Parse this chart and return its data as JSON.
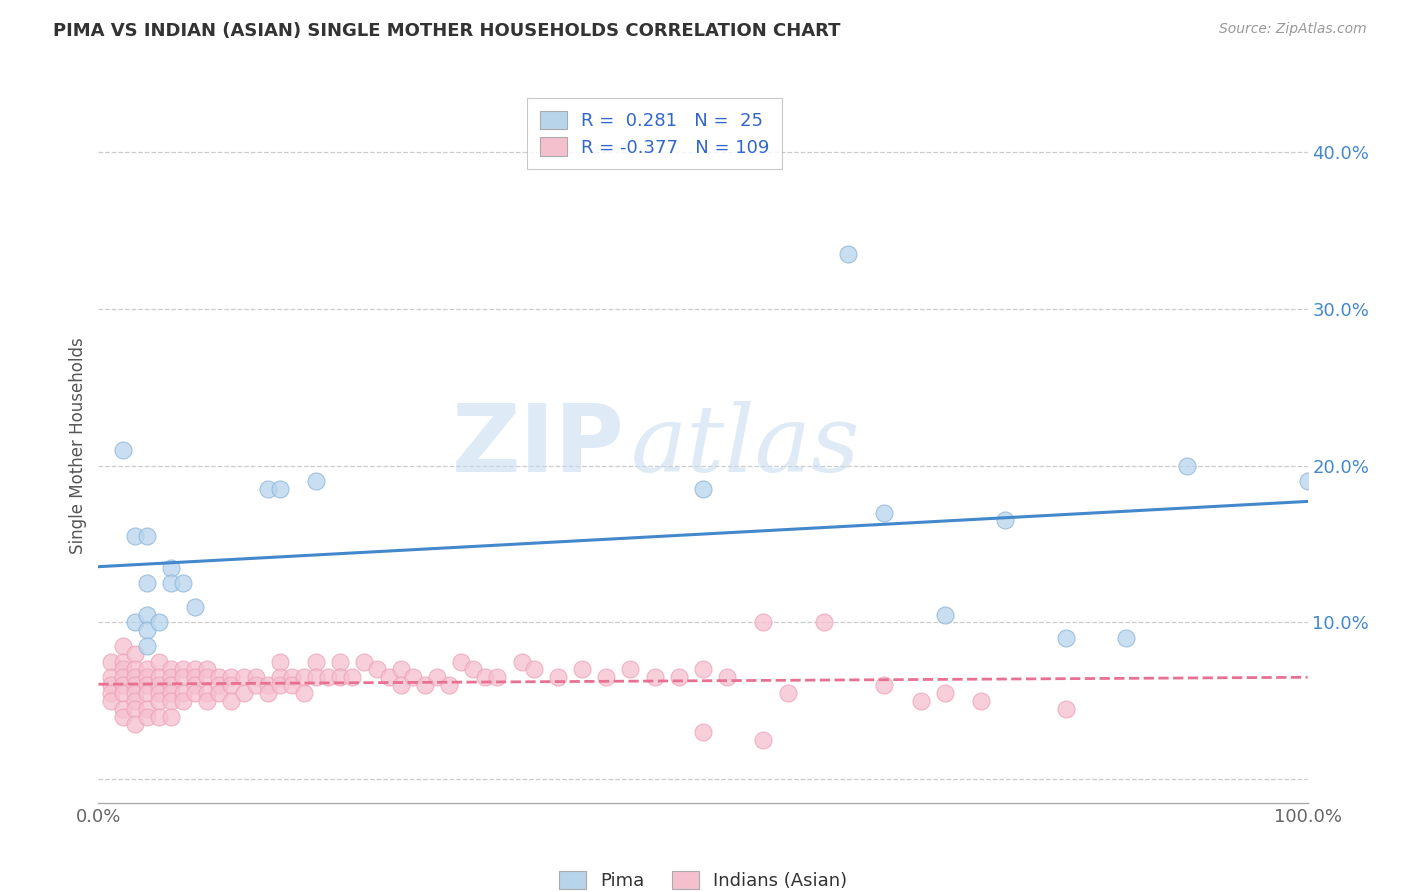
{
  "title": "PIMA VS INDIAN (ASIAN) SINGLE MOTHER HOUSEHOLDS CORRELATION CHART",
  "source": "Source: ZipAtlas.com",
  "ylabel": "Single Mother Households",
  "xlim": [
    0,
    1.0
  ],
  "ylim": [
    -0.015,
    0.44
  ],
  "xticks": [
    0.0,
    0.1,
    0.2,
    0.3,
    0.4,
    0.5,
    0.6,
    0.7,
    0.8,
    0.9,
    1.0
  ],
  "yticks": [
    0.0,
    0.1,
    0.2,
    0.3,
    0.4
  ],
  "pima_color": "#b8d4eb",
  "pima_edge_color": "#89b4d8",
  "indian_color": "#f5c0ce",
  "indian_edge_color": "#eda0b8",
  "line_pima_color": "#4488cc",
  "line_indian_color": "#e87090",
  "legend_pima_label": "Pima",
  "legend_indian_label": "Indians (Asian)",
  "R_pima": 0.281,
  "N_pima": 25,
  "R_indian": -0.377,
  "N_indian": 109,
  "watermark_zip": "ZIP",
  "watermark_atlas": "atlas",
  "tick_label_color": "#4488cc",
  "pima_points": [
    [
      0.02,
      0.21
    ],
    [
      0.03,
      0.1
    ],
    [
      0.03,
      0.155
    ],
    [
      0.04,
      0.155
    ],
    [
      0.04,
      0.125
    ],
    [
      0.04,
      0.105
    ],
    [
      0.04,
      0.095
    ],
    [
      0.04,
      0.085
    ],
    [
      0.05,
      0.1
    ],
    [
      0.06,
      0.135
    ],
    [
      0.06,
      0.125
    ],
    [
      0.07,
      0.125
    ],
    [
      0.08,
      0.11
    ],
    [
      0.14,
      0.185
    ],
    [
      0.15,
      0.185
    ],
    [
      0.18,
      0.19
    ],
    [
      0.5,
      0.185
    ],
    [
      0.62,
      0.335
    ],
    [
      0.65,
      0.17
    ],
    [
      0.7,
      0.105
    ],
    [
      0.75,
      0.165
    ],
    [
      0.8,
      0.09
    ],
    [
      0.85,
      0.09
    ],
    [
      0.9,
      0.2
    ],
    [
      1.0,
      0.19
    ]
  ],
  "indian_points": [
    [
      0.01,
      0.075
    ],
    [
      0.01,
      0.065
    ],
    [
      0.01,
      0.06
    ],
    [
      0.01,
      0.055
    ],
    [
      0.01,
      0.05
    ],
    [
      0.02,
      0.085
    ],
    [
      0.02,
      0.075
    ],
    [
      0.02,
      0.07
    ],
    [
      0.02,
      0.065
    ],
    [
      0.02,
      0.06
    ],
    [
      0.02,
      0.055
    ],
    [
      0.02,
      0.045
    ],
    [
      0.02,
      0.04
    ],
    [
      0.03,
      0.08
    ],
    [
      0.03,
      0.07
    ],
    [
      0.03,
      0.065
    ],
    [
      0.03,
      0.06
    ],
    [
      0.03,
      0.055
    ],
    [
      0.03,
      0.05
    ],
    [
      0.03,
      0.045
    ],
    [
      0.03,
      0.035
    ],
    [
      0.04,
      0.07
    ],
    [
      0.04,
      0.065
    ],
    [
      0.04,
      0.06
    ],
    [
      0.04,
      0.055
    ],
    [
      0.04,
      0.045
    ],
    [
      0.04,
      0.04
    ],
    [
      0.05,
      0.075
    ],
    [
      0.05,
      0.065
    ],
    [
      0.05,
      0.06
    ],
    [
      0.05,
      0.055
    ],
    [
      0.05,
      0.05
    ],
    [
      0.05,
      0.04
    ],
    [
      0.06,
      0.07
    ],
    [
      0.06,
      0.065
    ],
    [
      0.06,
      0.06
    ],
    [
      0.06,
      0.055
    ],
    [
      0.06,
      0.05
    ],
    [
      0.06,
      0.04
    ],
    [
      0.07,
      0.07
    ],
    [
      0.07,
      0.065
    ],
    [
      0.07,
      0.055
    ],
    [
      0.07,
      0.05
    ],
    [
      0.08,
      0.07
    ],
    [
      0.08,
      0.065
    ],
    [
      0.08,
      0.06
    ],
    [
      0.08,
      0.055
    ],
    [
      0.09,
      0.07
    ],
    [
      0.09,
      0.065
    ],
    [
      0.09,
      0.055
    ],
    [
      0.09,
      0.05
    ],
    [
      0.1,
      0.065
    ],
    [
      0.1,
      0.06
    ],
    [
      0.1,
      0.055
    ],
    [
      0.11,
      0.065
    ],
    [
      0.11,
      0.06
    ],
    [
      0.11,
      0.05
    ],
    [
      0.12,
      0.065
    ],
    [
      0.12,
      0.055
    ],
    [
      0.13,
      0.065
    ],
    [
      0.13,
      0.06
    ],
    [
      0.14,
      0.06
    ],
    [
      0.14,
      0.055
    ],
    [
      0.15,
      0.075
    ],
    [
      0.15,
      0.065
    ],
    [
      0.15,
      0.06
    ],
    [
      0.16,
      0.065
    ],
    [
      0.16,
      0.06
    ],
    [
      0.17,
      0.065
    ],
    [
      0.17,
      0.055
    ],
    [
      0.18,
      0.075
    ],
    [
      0.18,
      0.065
    ],
    [
      0.19,
      0.065
    ],
    [
      0.2,
      0.075
    ],
    [
      0.2,
      0.065
    ],
    [
      0.21,
      0.065
    ],
    [
      0.22,
      0.075
    ],
    [
      0.23,
      0.07
    ],
    [
      0.24,
      0.065
    ],
    [
      0.25,
      0.07
    ],
    [
      0.25,
      0.06
    ],
    [
      0.26,
      0.065
    ],
    [
      0.27,
      0.06
    ],
    [
      0.28,
      0.065
    ],
    [
      0.29,
      0.06
    ],
    [
      0.3,
      0.075
    ],
    [
      0.31,
      0.07
    ],
    [
      0.32,
      0.065
    ],
    [
      0.33,
      0.065
    ],
    [
      0.35,
      0.075
    ],
    [
      0.36,
      0.07
    ],
    [
      0.38,
      0.065
    ],
    [
      0.4,
      0.07
    ],
    [
      0.42,
      0.065
    ],
    [
      0.44,
      0.07
    ],
    [
      0.46,
      0.065
    ],
    [
      0.48,
      0.065
    ],
    [
      0.5,
      0.07
    ],
    [
      0.52,
      0.065
    ],
    [
      0.55,
      0.1
    ],
    [
      0.57,
      0.055
    ],
    [
      0.6,
      0.1
    ],
    [
      0.65,
      0.06
    ],
    [
      0.68,
      0.05
    ],
    [
      0.7,
      0.055
    ],
    [
      0.73,
      0.05
    ],
    [
      0.8,
      0.045
    ],
    [
      0.5,
      0.03
    ],
    [
      0.55,
      0.025
    ]
  ]
}
